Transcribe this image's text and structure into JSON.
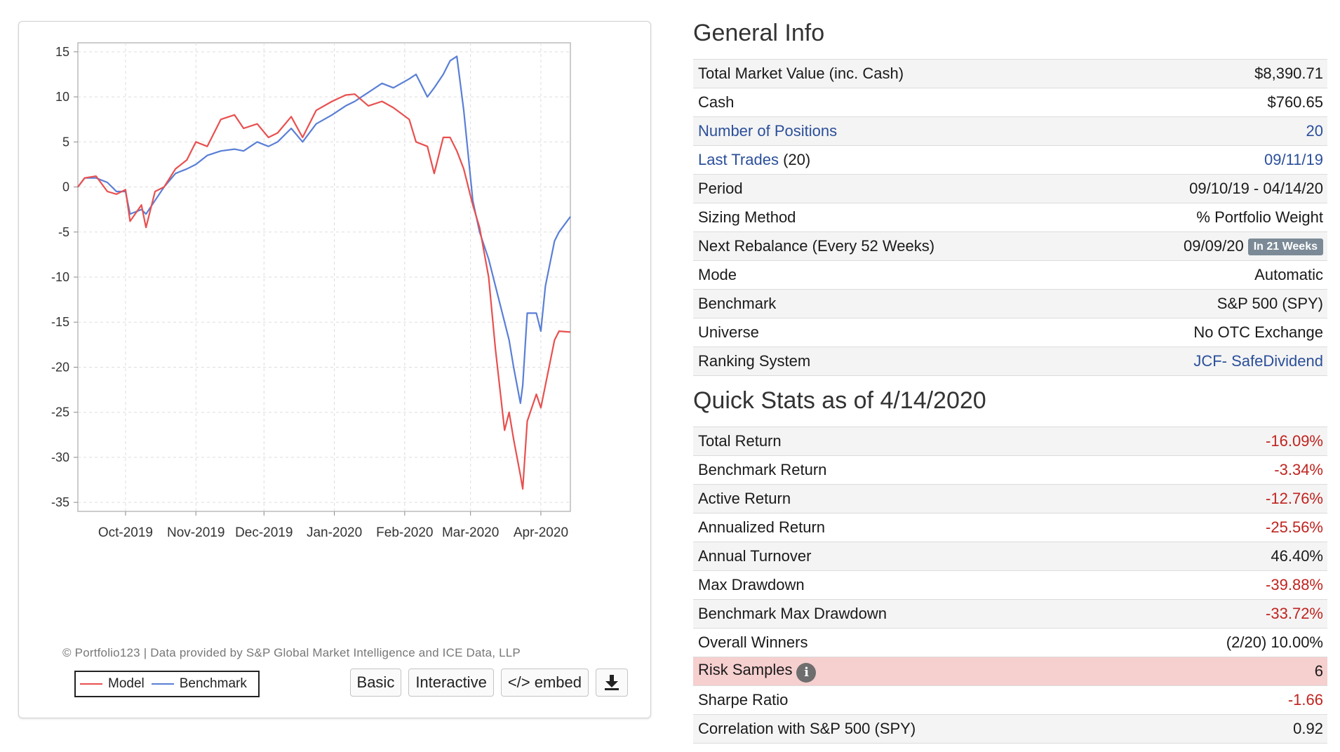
{
  "chart": {
    "credit": "© Portfolio123 | Data provided by S&P Global Market Intelligence and ICE Data, LLP",
    "legend": {
      "model": "Model",
      "benchmark": "Benchmark"
    },
    "buttons": {
      "basic": "Basic",
      "interactive": "Interactive",
      "embed": "</> embed",
      "download_icon": "download-icon"
    }
  },
  "chart_data": {
    "type": "line",
    "ylim": [
      -36,
      16
    ],
    "yticks": [
      15,
      10,
      5,
      0,
      -5,
      -10,
      -15,
      -20,
      -25,
      -30,
      -35
    ],
    "xticks": [
      {
        "label": "Oct-2019",
        "x": "2019-10-01"
      },
      {
        "label": "Nov-2019",
        "x": "2019-11-01"
      },
      {
        "label": "Dec-2019",
        "x": "2019-12-01"
      },
      {
        "label": "Jan-2020",
        "x": "2020-01-01"
      },
      {
        "label": "Feb-2020",
        "x": "2020-02-01"
      },
      {
        "label": "Mar-2020",
        "x": "2020-03-01"
      },
      {
        "label": "Apr-2020",
        "x": "2020-04-01"
      }
    ],
    "xlim": [
      "2019-09-10",
      "2020-04-14"
    ],
    "grid": true,
    "legend_position": "bottom-left",
    "series": [
      {
        "name": "Model",
        "color": "#e8504f",
        "points": [
          [
            "2019-09-10",
            0
          ],
          [
            "2019-09-13",
            1
          ],
          [
            "2019-09-18",
            1.2
          ],
          [
            "2019-09-23",
            -0.5
          ],
          [
            "2019-09-27",
            -0.8
          ],
          [
            "2019-10-01",
            -0.3
          ],
          [
            "2019-10-03",
            -3.8
          ],
          [
            "2019-10-08",
            -2
          ],
          [
            "2019-10-10",
            -4.5
          ],
          [
            "2019-10-14",
            -0.5
          ],
          [
            "2019-10-18",
            0
          ],
          [
            "2019-10-23",
            2
          ],
          [
            "2019-10-28",
            3
          ],
          [
            "2019-11-01",
            5
          ],
          [
            "2019-11-06",
            4.5
          ],
          [
            "2019-11-12",
            7.5
          ],
          [
            "2019-11-18",
            8
          ],
          [
            "2019-11-22",
            6.5
          ],
          [
            "2019-11-28",
            7
          ],
          [
            "2019-12-03",
            5.5
          ],
          [
            "2019-12-07",
            6
          ],
          [
            "2019-12-13",
            7.8
          ],
          [
            "2019-12-18",
            5.5
          ],
          [
            "2019-12-24",
            8.5
          ],
          [
            "2019-12-31",
            9.5
          ],
          [
            "2020-01-06",
            10.2
          ],
          [
            "2020-01-10",
            10.3
          ],
          [
            "2020-01-16",
            9
          ],
          [
            "2020-01-22",
            9.5
          ],
          [
            "2020-01-27",
            8.8
          ],
          [
            "2020-02-03",
            7.5
          ],
          [
            "2020-02-06",
            5
          ],
          [
            "2020-02-11",
            4.5
          ],
          [
            "2020-02-14",
            1.5
          ],
          [
            "2020-02-18",
            5.5
          ],
          [
            "2020-02-21",
            5.5
          ],
          [
            "2020-02-24",
            4
          ],
          [
            "2020-02-27",
            2
          ],
          [
            "2020-03-02",
            -2
          ],
          [
            "2020-03-05",
            -4.5
          ],
          [
            "2020-03-09",
            -10
          ],
          [
            "2020-03-12",
            -18
          ],
          [
            "2020-03-16",
            -27
          ],
          [
            "2020-03-18",
            -25
          ],
          [
            "2020-03-20",
            -28
          ],
          [
            "2020-03-23",
            -32
          ],
          [
            "2020-03-24",
            -33.5
          ],
          [
            "2020-03-26",
            -26
          ],
          [
            "2020-03-30",
            -23
          ],
          [
            "2020-04-01",
            -24.5
          ],
          [
            "2020-04-03",
            -22
          ],
          [
            "2020-04-07",
            -17
          ],
          [
            "2020-04-09",
            -16
          ],
          [
            "2020-04-14",
            -16.1
          ]
        ]
      },
      {
        "name": "Benchmark",
        "color": "#5a7fd6",
        "points": [
          [
            "2019-09-10",
            0
          ],
          [
            "2019-09-13",
            1
          ],
          [
            "2019-09-18",
            1
          ],
          [
            "2019-09-23",
            0.5
          ],
          [
            "2019-09-27",
            -0.5
          ],
          [
            "2019-10-01",
            -0.5
          ],
          [
            "2019-10-03",
            -3
          ],
          [
            "2019-10-08",
            -2.5
          ],
          [
            "2019-10-10",
            -3
          ],
          [
            "2019-10-14",
            -1.5
          ],
          [
            "2019-10-18",
            0
          ],
          [
            "2019-10-23",
            1.5
          ],
          [
            "2019-10-28",
            2
          ],
          [
            "2019-11-01",
            2.5
          ],
          [
            "2019-11-06",
            3.5
          ],
          [
            "2019-11-12",
            4
          ],
          [
            "2019-11-18",
            4.2
          ],
          [
            "2019-11-22",
            4
          ],
          [
            "2019-11-28",
            5
          ],
          [
            "2019-12-03",
            4.5
          ],
          [
            "2019-12-07",
            5
          ],
          [
            "2019-12-13",
            6.5
          ],
          [
            "2019-12-18",
            5
          ],
          [
            "2019-12-24",
            7
          ],
          [
            "2019-12-31",
            8
          ],
          [
            "2020-01-06",
            9
          ],
          [
            "2020-01-10",
            9.5
          ],
          [
            "2020-01-16",
            10.5
          ],
          [
            "2020-01-22",
            11.5
          ],
          [
            "2020-01-27",
            11
          ],
          [
            "2020-02-03",
            12
          ],
          [
            "2020-02-06",
            12.5
          ],
          [
            "2020-02-11",
            10
          ],
          [
            "2020-02-14",
            11
          ],
          [
            "2020-02-18",
            12.5
          ],
          [
            "2020-02-21",
            14
          ],
          [
            "2020-02-24",
            14.5
          ],
          [
            "2020-02-27",
            8.5
          ],
          [
            "2020-03-02",
            -1.5
          ],
          [
            "2020-03-05",
            -5
          ],
          [
            "2020-03-09",
            -8
          ],
          [
            "2020-03-12",
            -11
          ],
          [
            "2020-03-16",
            -15
          ],
          [
            "2020-03-18",
            -17
          ],
          [
            "2020-03-20",
            -20
          ],
          [
            "2020-03-23",
            -24
          ],
          [
            "2020-03-24",
            -22
          ],
          [
            "2020-03-26",
            -14
          ],
          [
            "2020-03-30",
            -14
          ],
          [
            "2020-04-01",
            -16
          ],
          [
            "2020-04-03",
            -11
          ],
          [
            "2020-04-07",
            -6
          ],
          [
            "2020-04-09",
            -5
          ],
          [
            "2020-04-14",
            -3.3
          ]
        ]
      }
    ]
  },
  "general": {
    "title": "General Info",
    "rows": [
      {
        "label": "Total Market Value (inc. Cash)",
        "value": "$8,390.71"
      },
      {
        "label": "Cash",
        "value": "$760.65"
      },
      {
        "label": "Number of Positions",
        "value": "20"
      },
      {
        "label": "Last Trades",
        "label_suffix": " (20)",
        "value": "09/11/19"
      },
      {
        "label": "Period",
        "value": "09/10/19 - 04/14/20"
      },
      {
        "label": "Sizing Method",
        "value": "% Portfolio Weight"
      },
      {
        "label": "Next Rebalance (Every 52 Weeks)",
        "value": "09/09/20",
        "badge": "In 21 Weeks"
      },
      {
        "label": "Mode",
        "value": "Automatic"
      },
      {
        "label": "Benchmark",
        "value": "S&P 500 (SPY)"
      },
      {
        "label": "Universe",
        "value": "No OTC Exchange"
      },
      {
        "label": "Ranking System",
        "value": "JCF- SafeDividend"
      }
    ]
  },
  "quick": {
    "title": "Quick Stats as of 4/14/2020",
    "rows": [
      {
        "label": "Total Return",
        "value": "-16.09%"
      },
      {
        "label": "Benchmark Return",
        "value": "-3.34%"
      },
      {
        "label": "Active Return",
        "value": "-12.76%"
      },
      {
        "label": "Annualized Return",
        "value": "-25.56%"
      },
      {
        "label": "Annual Turnover",
        "value": "46.40%"
      },
      {
        "label": "Max Drawdown",
        "value": "-39.88%"
      },
      {
        "label": "Benchmark Max Drawdown",
        "value": "-33.72%"
      },
      {
        "label": "Overall Winners",
        "value": "(2/20) 10.00%"
      },
      {
        "label": "Risk Samples",
        "value": "6",
        "info_icon": "i"
      },
      {
        "label": "Sharpe Ratio",
        "value": "-1.66"
      },
      {
        "label": "Correlation with S&P 500 (SPY)",
        "value": "0.92"
      }
    ]
  },
  "colors": {
    "link": "#2b4f9a",
    "negative": "#c0231f",
    "highlight": "#f6cfcf",
    "badge": "#7b8a96"
  }
}
